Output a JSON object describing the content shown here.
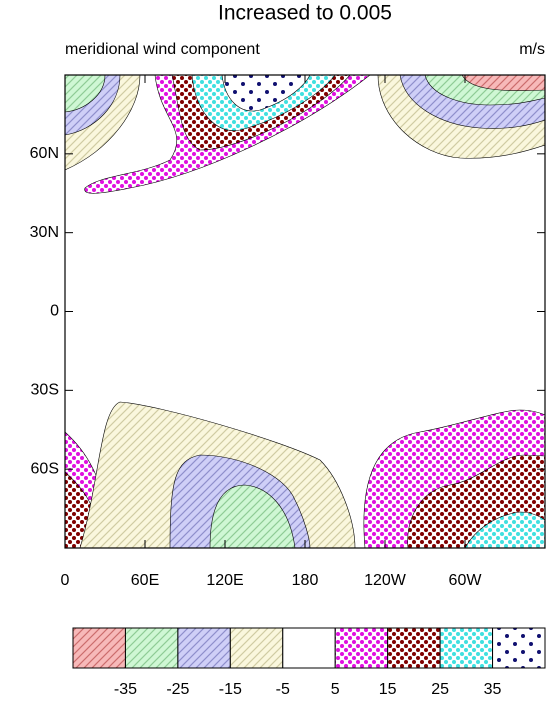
{
  "chart_data": {
    "type": "contour",
    "title": "Increased to 0.005",
    "left_string": "meridional wind component",
    "right_string": "m/s",
    "xlim": [
      0,
      360
    ],
    "ylim": [
      -90,
      90
    ],
    "xticks": [
      0,
      {
        "value": 60,
        "label": "60E"
      },
      {
        "value": 120,
        "label": "120E"
      },
      180,
      {
        "value": 240,
        "label": "120W"
      },
      {
        "value": 300,
        "label": "60W"
      }
    ],
    "yticks": [
      {
        "value": 60,
        "label": "60N"
      },
      {
        "value": 30,
        "label": "30N"
      },
      0,
      {
        "value": -30,
        "label": "30S"
      },
      {
        "value": -60,
        "label": "60S"
      }
    ],
    "levels": [
      -35,
      -25,
      -15,
      -5,
      5,
      15,
      25,
      35
    ],
    "fills": [
      {
        "color": "#f08080",
        "pattern": "hatch"
      },
      {
        "color": "#a8f0b0",
        "pattern": "hatch"
      },
      {
        "color": "#a8a8f0",
        "pattern": "hatch"
      },
      {
        "color": "#f5f0c0",
        "pattern": "hatch"
      },
      {
        "color": "#ffffff",
        "pattern": "none"
      },
      {
        "color": "#e010e0",
        "pattern": "dots"
      },
      {
        "color": "#800000",
        "pattern": "dots"
      },
      {
        "color": "#40e0e0",
        "pattern": "dots"
      },
      {
        "color": "#101070",
        "pattern": "sparse"
      }
    ]
  }
}
